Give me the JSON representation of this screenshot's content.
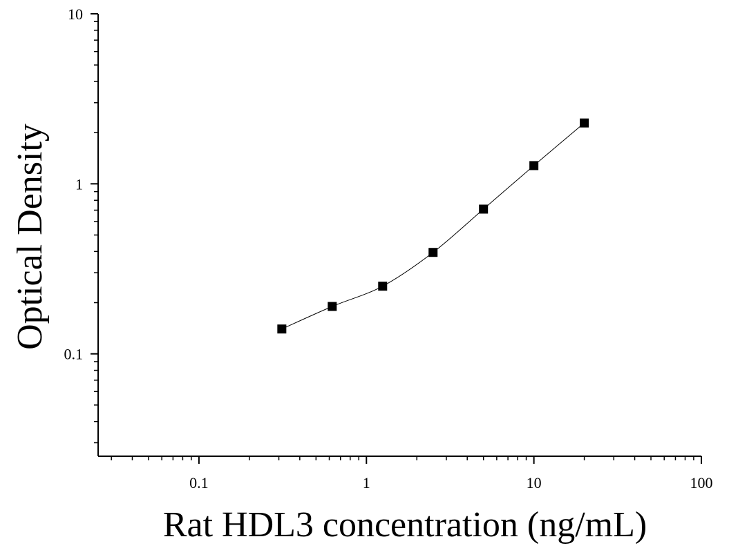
{
  "chart_data": {
    "type": "scatter",
    "title": "",
    "xlabel": "Rat HDL3 concentration (ng/mL)",
    "ylabel": "Optical Density",
    "x_scale": "log",
    "y_scale": "log",
    "xlim": [
      0.025,
      100
    ],
    "ylim": [
      0.025,
      10
    ],
    "x_ticks": [
      {
        "value": 0.1,
        "label": "0.1"
      },
      {
        "value": 1,
        "label": "1"
      },
      {
        "value": 10,
        "label": "10"
      },
      {
        "value": 100,
        "label": "100"
      }
    ],
    "y_ticks": [
      {
        "value": 0.1,
        "label": "0.1"
      },
      {
        "value": 1,
        "label": "1"
      },
      {
        "value": 10,
        "label": "10"
      }
    ],
    "grid": false,
    "legend": "none",
    "series": [
      {
        "marker": "square",
        "color": "#000000",
        "fit_line": true,
        "x": [
          0.3125,
          0.625,
          1.25,
          2.5,
          5,
          10,
          20
        ],
        "y": [
          0.14,
          0.19,
          0.25,
          0.395,
          0.71,
          1.28,
          2.28
        ]
      }
    ]
  }
}
